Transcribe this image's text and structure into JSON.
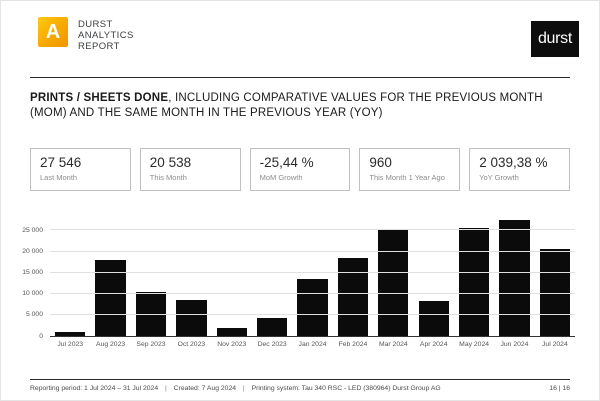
{
  "header": {
    "logo_letter": "A",
    "brand_lines": [
      "DURST",
      "ANALYTICS",
      "REPORT"
    ],
    "durst_logo_text": "durst",
    "brand_orange": "#f6a800"
  },
  "title": {
    "emphasis": "PRINTS / SHEETS DONE",
    "rest": ", INCLUDING COMPARATIVE VALUES FOR THE PREVIOUS MONTH (MOM) AND THE SAME MONTH IN THE PREVIOUS YEAR (YOY)"
  },
  "cards": [
    {
      "value": "27 546",
      "label": "Last Month"
    },
    {
      "value": "20 538",
      "label": "This Month"
    },
    {
      "value": "-25,44 %",
      "label": "MoM Growth"
    },
    {
      "value": "960",
      "label": "This Month 1 Year Ago"
    },
    {
      "value": "2 039,38 %",
      "label": "YoY Growth"
    }
  ],
  "chart_data": {
    "type": "bar",
    "categories": [
      "Jul 2023",
      "Aug 2023",
      "Sep 2023",
      "Oct 2023",
      "Nov 2023",
      "Dec 2023",
      "Jan 2024",
      "Feb 2024",
      "Mar 2024",
      "Apr 2024",
      "May 2024",
      "Jun 2024",
      "Jul 2024"
    ],
    "values": [
      960,
      18000,
      10300,
      8500,
      1800,
      4200,
      13400,
      18500,
      25300,
      8400,
      25500,
      27546,
      20538
    ],
    "title": "",
    "xlabel": "",
    "ylabel": "",
    "ylim": [
      0,
      28400
    ],
    "y_ticks": [
      {
        "v": 0,
        "label": "0"
      },
      {
        "v": 5000,
        "label": "5 000"
      },
      {
        "v": 10000,
        "label": "10 000"
      },
      {
        "v": 15000,
        "label": "15 000"
      },
      {
        "v": 20000,
        "label": "20 000"
      },
      {
        "v": 25000,
        "label": "25 000"
      }
    ],
    "bar_color": "#0b0b0b",
    "grid": true,
    "legend": "none"
  },
  "footer": {
    "segments": [
      "Reporting period: 1 Jul 2024 – 31 Jul 2024",
      "Created: 7 Aug 2024",
      "Printing system: Tau 340 RSC - LED (380964) Durst Group AG"
    ],
    "separator": "|",
    "page": "16 | 16"
  }
}
